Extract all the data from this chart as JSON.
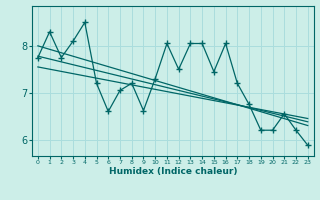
{
  "title": "",
  "xlabel": "Humidex (Indice chaleur)",
  "ylabel": "",
  "bg_color": "#cceee8",
  "line_color": "#006666",
  "grid_color": "#aadddd",
  "x_data": [
    0,
    1,
    2,
    3,
    4,
    5,
    6,
    7,
    8,
    9,
    10,
    11,
    12,
    13,
    14,
    15,
    16,
    17,
    18,
    19,
    20,
    21,
    22,
    23
  ],
  "y_data": [
    7.75,
    8.3,
    7.75,
    8.1,
    8.5,
    7.2,
    6.6,
    7.05,
    7.2,
    6.62,
    7.3,
    8.05,
    7.5,
    8.05,
    8.05,
    7.45,
    8.05,
    7.2,
    6.75,
    6.2,
    6.2,
    6.55,
    6.2,
    5.88
  ],
  "trend1_x": [
    0,
    23
  ],
  "trend1_y": [
    8.0,
    6.3
  ],
  "trend2_x": [
    0,
    23
  ],
  "trend2_y": [
    7.78,
    6.38
  ],
  "trend3_x": [
    0,
    23
  ],
  "trend3_y": [
    7.55,
    6.45
  ],
  "ylim": [
    5.65,
    8.85
  ],
  "xlim": [
    -0.5,
    23.5
  ],
  "yticks": [
    6,
    7,
    8
  ],
  "xticks": [
    0,
    1,
    2,
    3,
    4,
    5,
    6,
    7,
    8,
    9,
    10,
    11,
    12,
    13,
    14,
    15,
    16,
    17,
    18,
    19,
    20,
    21,
    22,
    23
  ]
}
